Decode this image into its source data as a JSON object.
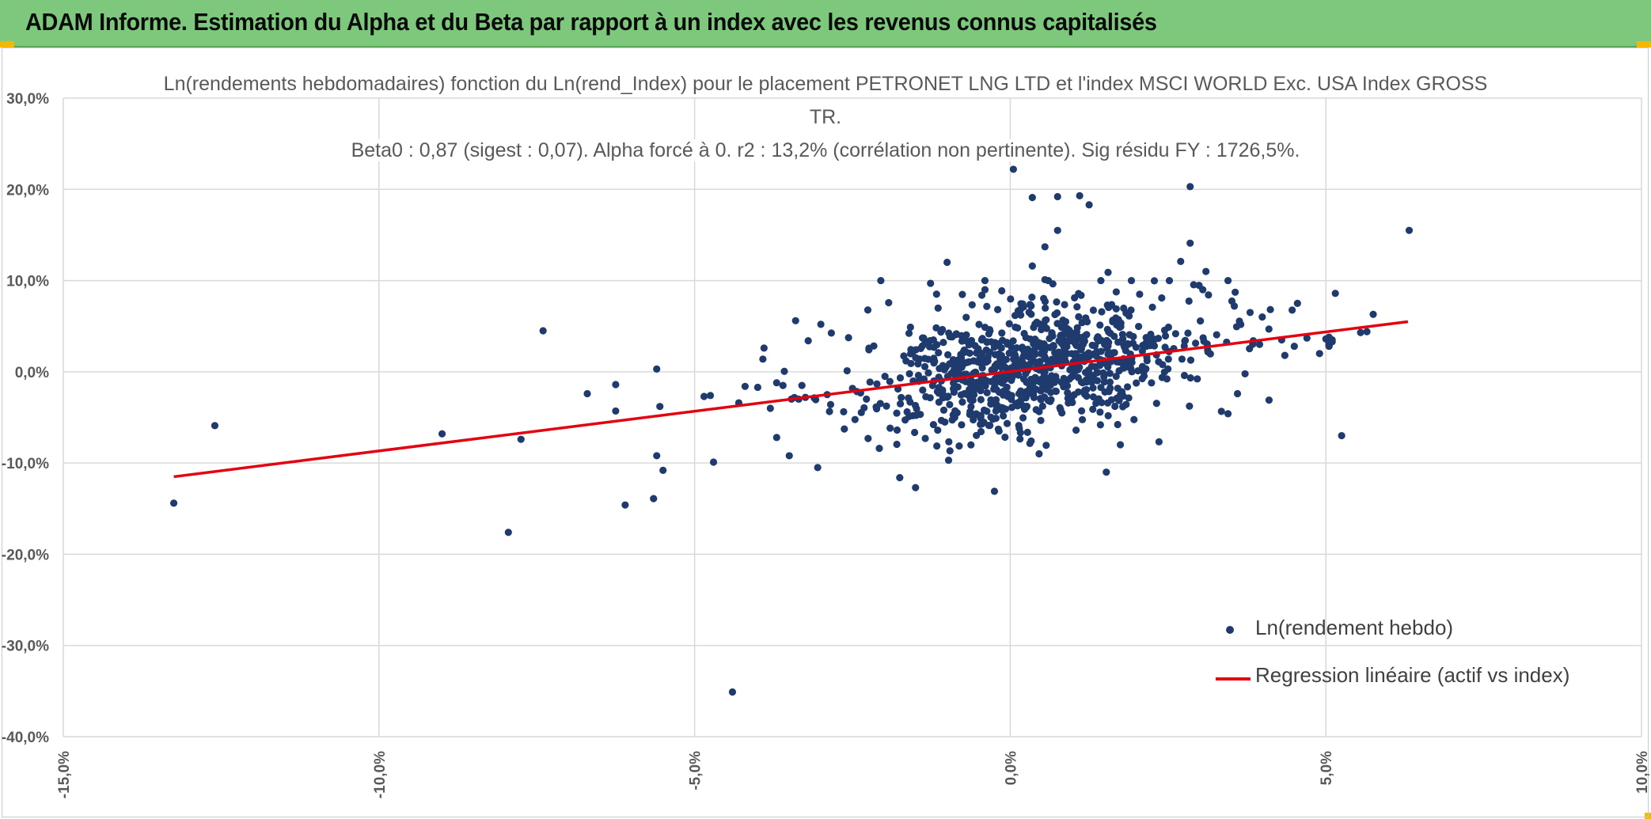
{
  "banner": {
    "title": "ADAM Informe. Estimation du Alpha et du Beta par rapport à un index avec les revenus connus capitalisés"
  },
  "colors": {
    "banner_bg": "#7dc87d",
    "points": "#1f3b6e",
    "regression": "#e3000f",
    "grid": "#d9d9d9",
    "axis_text": "#595959"
  },
  "chart_data": {
    "type": "scatter",
    "title_lines": [
      "Ln(rendements hebdomadaires) fonction du Ln(rend_Index) pour le placement PETRONET LNG LTD et l'index MSCI WORLD Exc. USA Index GROSS",
      "TR.",
      "Beta0 : 0,87 (sigest : 0,07). Alpha forcé à 0. r2 : 13,2% (corrélation non pertinente). Sig résidu FY : 1726,5%."
    ],
    "xlim": [
      -0.15,
      0.1
    ],
    "ylim": [
      -0.4,
      0.3
    ],
    "x_ticks": [
      "-15,0%",
      "-10,0%",
      "-5,0%",
      "0,0%",
      "5,0%",
      "10,0%"
    ],
    "y_ticks": [
      "30,0%",
      "20,0%",
      "10,0%",
      "0,0%",
      "-10,0%",
      "-20,0%",
      "-30,0%",
      "-40,0%"
    ],
    "grid": true,
    "legend_position": "bottom-right",
    "series": [
      {
        "name": "Ln(rendement hebdo)",
        "kind": "points",
        "outliers": [
          [
            -0.1325,
            -0.144
          ],
          [
            -0.126,
            -0.059
          ],
          [
            -0.09,
            -0.068
          ],
          [
            -0.0795,
            -0.176
          ],
          [
            -0.0775,
            -0.074
          ],
          [
            -0.074,
            0.045
          ],
          [
            -0.067,
            -0.024
          ],
          [
            -0.0625,
            -0.014
          ],
          [
            -0.0625,
            -0.043
          ],
          [
            -0.061,
            -0.146
          ],
          [
            -0.0565,
            -0.139
          ],
          [
            -0.056,
            0.003
          ],
          [
            -0.056,
            -0.092
          ],
          [
            -0.0555,
            -0.038
          ],
          [
            -0.055,
            -0.108
          ],
          [
            -0.0485,
            -0.027
          ],
          [
            -0.0475,
            -0.026
          ],
          [
            -0.047,
            -0.099
          ],
          [
            -0.044,
            -0.351
          ],
          [
            -0.043,
            -0.034
          ],
          [
            -0.042,
            -0.016
          ],
          [
            -0.04,
            -0.017
          ],
          [
            -0.039,
            0.026
          ],
          [
            -0.038,
            -0.04
          ],
          [
            -0.037,
            -0.072
          ],
          [
            -0.037,
            -0.012
          ],
          [
            -0.036,
            -0.015
          ],
          [
            -0.035,
            -0.092
          ],
          [
            -0.034,
            0.056
          ],
          [
            -0.0335,
            -0.03
          ],
          [
            -0.033,
            -0.015
          ],
          [
            -0.032,
            0.034
          ],
          [
            -0.0305,
            -0.105
          ],
          [
            -0.03,
            0.052
          ],
          [
            -0.029,
            -0.025
          ],
          [
            -0.0205,
            0.1
          ],
          [
            -0.0175,
            -0.116
          ],
          [
            -0.015,
            -0.127
          ],
          [
            -0.01,
            0.12
          ],
          [
            -0.004,
            0.09
          ],
          [
            -0.0025,
            -0.131
          ],
          [
            0.0035,
            0.116
          ],
          [
            0.0055,
            0.101
          ],
          [
            0.0005,
            0.222
          ],
          [
            0.0035,
            0.191
          ],
          [
            0.0075,
            0.192
          ],
          [
            0.011,
            0.193
          ],
          [
            0.0055,
            0.137
          ],
          [
            0.0075,
            0.155
          ],
          [
            0.0125,
            0.183
          ],
          [
            0.0155,
            0.109
          ],
          [
            0.0205,
            0.085
          ],
          [
            0.024,
            0.081
          ],
          [
            0.027,
            0.121
          ],
          [
            0.0285,
            0.203
          ],
          [
            0.0285,
            0.141
          ],
          [
            0.0305,
            0.09
          ],
          [
            0.031,
            0.11
          ],
          [
            0.0345,
            0.1
          ],
          [
            0.0345,
            -0.046
          ],
          [
            0.0355,
            0.072
          ],
          [
            0.036,
            -0.024
          ],
          [
            0.038,
            0.065
          ],
          [
            0.041,
            -0.031
          ],
          [
            0.043,
            0.035
          ],
          [
            0.0455,
            0.075
          ],
          [
            0.045,
            0.028
          ],
          [
            0.047,
            0.037
          ],
          [
            0.049,
            0.02
          ],
          [
            0.0505,
            0.032
          ],
          [
            0.0505,
            0.038
          ],
          [
            0.051,
            0.033
          ],
          [
            0.0505,
            0.028
          ],
          [
            0.0505,
            0.033
          ],
          [
            0.0505,
            0.031
          ],
          [
            0.0505,
            0.032
          ],
          [
            0.0505,
            0.029
          ],
          [
            0.0505,
            0.034
          ],
          [
            0.0505,
            0.03
          ],
          [
            0.0505,
            0.036
          ],
          [
            0.051,
            0.035
          ],
          [
            0.0565,
            0.044
          ],
          [
            0.05,
            0.036
          ],
          [
            0.0505,
            0.032
          ],
          [
            0.0505,
            0.034
          ],
          [
            0.0505,
            0.033
          ],
          [
            0.0505,
            0.031
          ],
          [
            0.0505,
            0.03
          ],
          [
            0.0505,
            0.035
          ],
          [
            0.0505,
            0.029
          ],
          [
            0.0505,
            0.037
          ],
          [
            0.0505,
            0.032
          ],
          [
            0.0505,
            0.033
          ],
          [
            0.0505,
            0.034
          ],
          [
            0.0505,
            0.031
          ],
          [
            0.0505,
            0.036
          ],
          [
            0.0505,
            0.031
          ],
          [
            0.0505,
            0.033
          ],
          [
            0.0505,
            0.034
          ],
          [
            0.0505,
            0.032
          ],
          [
            0.0505,
            0.035
          ],
          [
            0.0505,
            0.03
          ],
          [
            0.0505,
            0.036
          ],
          [
            0.0505,
            0.029
          ],
          [
            0.0505,
            0.031
          ],
          [
            0.0505,
            0.033
          ],
          [
            0.0505,
            0.032
          ],
          [
            0.0505,
            0.034
          ],
          [
            0.0505,
            0.032
          ],
          [
            0.0505,
            0.031
          ],
          [
            0.0505,
            0.035
          ],
          [
            0.0505,
            0.033
          ],
          [
            0.0505,
            0.036
          ],
          [
            0.0505,
            0.03
          ],
          [
            0.0505,
            0.034
          ],
          [
            0.0505,
            0.029
          ],
          [
            0.0505,
            0.032
          ],
          [
            0.0505,
            0.031
          ],
          [
            0.0505,
            0.033
          ],
          [
            0.0505,
            0.035
          ],
          [
            0.0505,
            0.037
          ],
          [
            0.0505,
            0.03
          ],
          [
            0.0505,
            0.034
          ],
          [
            0.0505,
            0.032
          ],
          [
            0.0515,
            0.086
          ],
          [
            0.0525,
            -0.07
          ],
          [
            0.0555,
            0.043
          ],
          [
            0.0575,
            0.063
          ],
          [
            0.0632,
            0.155
          ],
          [
            0.0435,
            0.018
          ],
          [
            0.0395,
            0.03
          ],
          [
            0.0385,
            0.034
          ]
        ],
        "cloud": {
          "count": 900,
          "x_mean": 0.003,
          "x_sd": 0.013,
          "y_mean": 0.002,
          "y_sd": 0.036
        }
      },
      {
        "name": "Regression linéaire (actif vs index)",
        "kind": "line",
        "points": [
          [
            -0.1325,
            -0.115
          ],
          [
            0.063,
            0.055
          ]
        ]
      }
    ]
  }
}
